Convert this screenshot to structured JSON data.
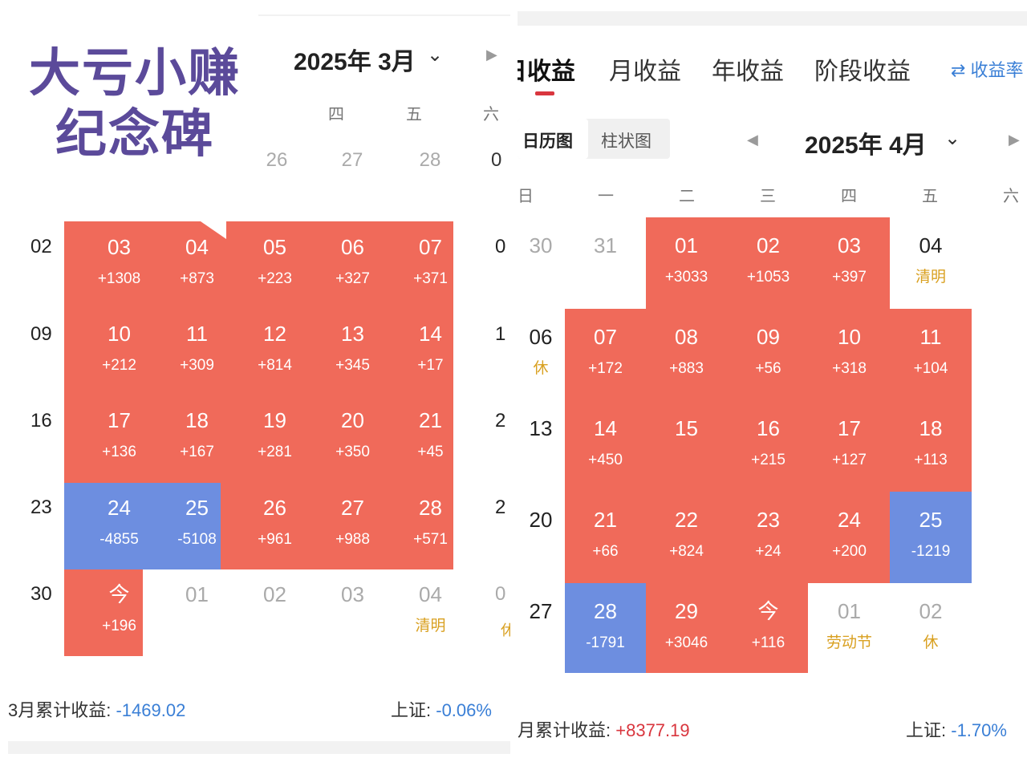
{
  "left": {
    "title_line1": "大亏小赚",
    "title_line2": "纪念碑",
    "month": "2025年 3月",
    "weekdays": [
      "四",
      "五",
      "六"
    ],
    "top_row": [
      "26",
      "27",
      "28",
      "0"
    ],
    "row_labels": [
      "02",
      "09",
      "16",
      "23",
      "30"
    ],
    "edge_labels": [
      "0",
      "1",
      "2",
      "2",
      "0"
    ],
    "edge_extra": "休",
    "cells": [
      [
        {
          "d": "03",
          "v": "+1308"
        },
        {
          "d": "04",
          "v": "+873"
        },
        {
          "d": "05",
          "v": "+223"
        },
        {
          "d": "06",
          "v": "+327"
        },
        {
          "d": "07",
          "v": "+371"
        }
      ],
      [
        {
          "d": "10",
          "v": "+212"
        },
        {
          "d": "11",
          "v": "+309"
        },
        {
          "d": "12",
          "v": "+814"
        },
        {
          "d": "13",
          "v": "+345"
        },
        {
          "d": "14",
          "v": "+17"
        }
      ],
      [
        {
          "d": "17",
          "v": "+136"
        },
        {
          "d": "18",
          "v": "+167"
        },
        {
          "d": "19",
          "v": "+281"
        },
        {
          "d": "20",
          "v": "+350"
        },
        {
          "d": "21",
          "v": "+45"
        }
      ],
      [
        {
          "d": "24",
          "v": "-4855"
        },
        {
          "d": "25",
          "v": "-5108"
        },
        {
          "d": "26",
          "v": "+961"
        },
        {
          "d": "27",
          "v": "+988"
        },
        {
          "d": "28",
          "v": "+571"
        }
      ],
      [
        {
          "d": "今",
          "v": "+196"
        },
        {
          "d": "01",
          "v": ""
        },
        {
          "d": "02",
          "v": ""
        },
        {
          "d": "03",
          "v": ""
        },
        {
          "d": "04",
          "v": "清明"
        }
      ]
    ],
    "summary_label": "3月累计收益:",
    "summary_value": "-1469.02",
    "index_label": "上证:",
    "index_value": "-0.06%"
  },
  "right": {
    "tabs": [
      "日收益",
      "月收益",
      "年收益",
      "阶段收益"
    ],
    "switch_label": "⇄ 收益率",
    "view_calendar": "日历图",
    "view_bar": "柱状图",
    "month": "2025年 4月",
    "weekdays": [
      "日",
      "一",
      "二",
      "三",
      "四",
      "五",
      "六"
    ],
    "rows": [
      [
        {
          "d": "30",
          "v": ""
        },
        {
          "d": "31",
          "v": ""
        },
        {
          "d": "01",
          "v": "+3033"
        },
        {
          "d": "02",
          "v": "+1053"
        },
        {
          "d": "03",
          "v": "+397"
        },
        {
          "d": "04",
          "v": "清明"
        }
      ],
      [
        {
          "d": "06",
          "v": "休"
        },
        {
          "d": "07",
          "v": "+172"
        },
        {
          "d": "08",
          "v": "+883"
        },
        {
          "d": "09",
          "v": "+56"
        },
        {
          "d": "10",
          "v": "+318"
        },
        {
          "d": "11",
          "v": "+104"
        }
      ],
      [
        {
          "d": "13",
          "v": ""
        },
        {
          "d": "14",
          "v": "+450"
        },
        {
          "d": "15",
          "v": ""
        },
        {
          "d": "16",
          "v": "+215"
        },
        {
          "d": "17",
          "v": "+127"
        },
        {
          "d": "18",
          "v": "+113"
        }
      ],
      [
        {
          "d": "20",
          "v": ""
        },
        {
          "d": "21",
          "v": "+66"
        },
        {
          "d": "22",
          "v": "+824"
        },
        {
          "d": "23",
          "v": "+24"
        },
        {
          "d": "24",
          "v": "+200"
        },
        {
          "d": "25",
          "v": "-1219"
        }
      ],
      [
        {
          "d": "27",
          "v": ""
        },
        {
          "d": "28",
          "v": "-1791"
        },
        {
          "d": "29",
          "v": "+3046"
        },
        {
          "d": "今",
          "v": "+116"
        },
        {
          "d": "01",
          "v": "劳动节"
        },
        {
          "d": "02",
          "v": "休"
        }
      ]
    ],
    "summary_label": "月累计收益:",
    "summary_value": "+8377.19",
    "index_label": "上证:",
    "index_value": "-1.70%"
  },
  "colors": {
    "gain": "#f06a5a",
    "loss": "#6d8ee0",
    "holiday": "#d9a020",
    "accent": "#d9363e"
  }
}
